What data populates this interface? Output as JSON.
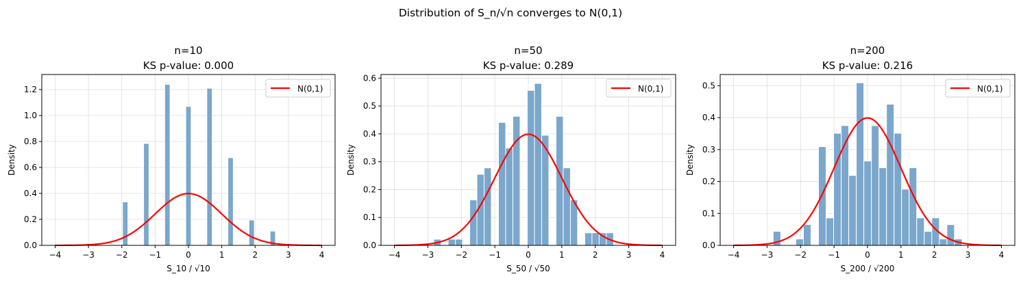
{
  "suptitle": "Distribution of S_n/√n converges to N(0,1)",
  "colors": {
    "bar": "#7ba7cc",
    "bar_edge": "#ffffff",
    "curve": "#ff0000",
    "grid": "#dddddd"
  },
  "chart_data": [
    {
      "type": "bar",
      "title_line1": "n=10",
      "title_line2": "KS p-value: 0.000",
      "xlabel": "S_10 / √10",
      "ylabel": "Density",
      "xlim": [
        -4.4,
        4.4
      ],
      "ylim": [
        0,
        1.316
      ],
      "xticks": [
        -4,
        -3,
        -2,
        -1,
        0,
        1,
        2,
        3,
        4
      ],
      "yticks": [
        0.0,
        0.2,
        0.4,
        0.6,
        0.8,
        1.0,
        1.2
      ],
      "ytick_labels": [
        "0.0",
        "0.2",
        "0.4",
        "0.6",
        "0.8",
        "1.0",
        "1.2"
      ],
      "bin_width": 0.16,
      "bar_centers": [
        -1.897,
        -1.265,
        -0.632,
        0.0,
        0.632,
        1.265,
        1.897,
        2.53
      ],
      "values": [
        0.335,
        0.785,
        1.24,
        1.07,
        1.21,
        0.675,
        0.195,
        0.11
      ],
      "legend": "N(0,1)",
      "legend_position": "top-right",
      "grid": true
    },
    {
      "type": "bar",
      "title_line1": "n=50",
      "title_line2": "KS p-value: 0.289",
      "xlabel": "S_50 / √50",
      "ylabel": "Density",
      "xlim": [
        -4.4,
        4.4
      ],
      "ylim": [
        0,
        0.613
      ],
      "xticks": [
        -4,
        -3,
        -2,
        -1,
        0,
        1,
        2,
        3,
        4
      ],
      "yticks": [
        0.0,
        0.1,
        0.2,
        0.3,
        0.4,
        0.5,
        0.6
      ],
      "ytick_labels": [
        "0.0",
        "0.1",
        "0.2",
        "0.3",
        "0.4",
        "0.5",
        "0.6"
      ],
      "bin_start": -2.824,
      "bin_width": 0.2148,
      "bin_index": [
        0,
        2,
        3,
        5,
        6,
        7,
        9,
        10,
        11,
        13,
        14,
        15,
        17,
        18,
        19,
        21,
        22,
        23,
        24
      ],
      "values": [
        0.022,
        0.022,
        0.022,
        0.163,
        0.255,
        0.278,
        0.441,
        0.349,
        0.463,
        0.556,
        0.581,
        0.395,
        0.463,
        0.278,
        0.163,
        0.045,
        0.045,
        0.045,
        0.045
      ],
      "legend": "N(0,1)",
      "legend_position": "top-right",
      "grid": true
    },
    {
      "type": "bar",
      "title_line1": "n=200",
      "title_line2": "KS p-value: 0.216",
      "xlabel": "S_200 / √200",
      "ylabel": "Density",
      "xlim": [
        -4.4,
        4.4
      ],
      "ylim": [
        0,
        0.535
      ],
      "xticks": [
        -4,
        -3,
        -2,
        -1,
        0,
        1,
        2,
        3,
        4
      ],
      "yticks": [
        0.0,
        0.1,
        0.2,
        0.3,
        0.4,
        0.5
      ],
      "ytick_labels": [
        "0.0",
        "0.1",
        "0.2",
        "0.3",
        "0.4",
        "0.5"
      ],
      "bin_start": -2.817,
      "bin_width": 0.2256,
      "bin_index": [
        0,
        3,
        4,
        6,
        7,
        8,
        9,
        10,
        11,
        12,
        13,
        14,
        15,
        16,
        17,
        18,
        19,
        20,
        21,
        22,
        23,
        24
      ],
      "values": [
        0.044,
        0.02,
        0.065,
        0.309,
        0.086,
        0.351,
        0.375,
        0.219,
        0.509,
        0.264,
        0.375,
        0.243,
        0.442,
        0.351,
        0.176,
        0.243,
        0.086,
        0.044,
        0.086,
        0.02,
        0.065,
        0.02
      ],
      "legend": "N(0,1)",
      "legend_position": "top-right",
      "grid": true
    }
  ]
}
